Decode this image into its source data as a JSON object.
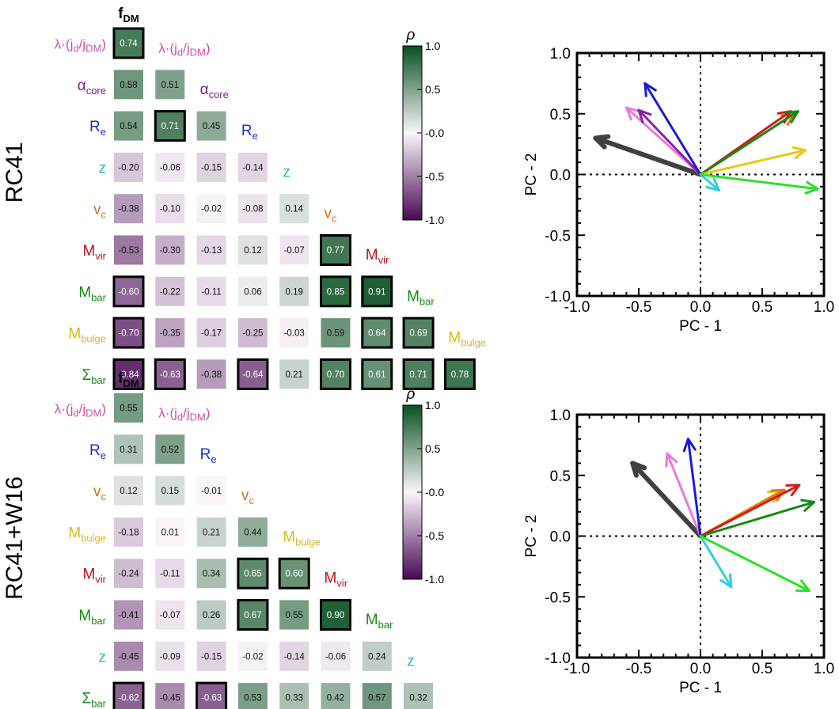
{
  "colorbar": {
    "title": "ρ",
    "ticks": [
      "1.0",
      "0.5",
      "-0.0",
      "-0.5",
      "-1.0"
    ]
  },
  "chart_data": [
    {
      "type": "heatmap",
      "row_title": "RC41",
      "top_label": {
        "text": "f",
        "sub": "DM",
        "color": "#000000"
      },
      "rows": [
        {
          "label": "λ·(j",
          "sub1": "d",
          "mid": "/j",
          "sub2": "DM",
          "tail": ")",
          "color": "#cc4fa8",
          "values": [
            0.74
          ]
        },
        {
          "label": "α",
          "sub": "core",
          "color": "#7a1a8c",
          "values": [
            0.58,
            0.51
          ]
        },
        {
          "label": "R",
          "sub": "e",
          "color": "#1a2fc8",
          "values": [
            0.54,
            0.71,
            0.45
          ]
        },
        {
          "label": "z",
          "sub": "",
          "color": "#2bb8c4",
          "values": [
            -0.2,
            -0.06,
            -0.15,
            -0.14
          ]
        },
        {
          "label": "v",
          "sub": "c",
          "color": "#d2701a",
          "values": [
            -0.38,
            -0.1,
            -0.02,
            -0.08,
            0.14
          ]
        },
        {
          "label": "M",
          "sub": "vir",
          "color": "#b81414",
          "values": [
            -0.53,
            -0.3,
            -0.13,
            0.12,
            -0.07,
            0.77
          ]
        },
        {
          "label": "M",
          "sub": "bar",
          "color": "#138a13",
          "values": [
            -0.6,
            -0.22,
            -0.11,
            0.06,
            0.19,
            0.85,
            0.91
          ]
        },
        {
          "label": "M",
          "sub": "bulge",
          "color": "#d9b81a",
          "values": [
            -0.7,
            -0.35,
            -0.17,
            -0.25,
            -0.03,
            0.59,
            0.64,
            0.69
          ]
        },
        {
          "label": "Σ",
          "sub": "bar",
          "color": "#138a13",
          "values": [
            -0.84,
            -0.63,
            -0.38,
            -0.64,
            0.21,
            0.7,
            0.61,
            0.71,
            0.78
          ]
        }
      ],
      "boxed": [
        [
          0,
          0
        ],
        [
          2,
          1
        ],
        [
          5,
          5
        ],
        [
          6,
          0
        ],
        [
          6,
          5
        ],
        [
          6,
          6
        ],
        [
          7,
          0
        ],
        [
          7,
          6
        ],
        [
          7,
          7
        ],
        [
          8,
          0
        ],
        [
          8,
          1
        ],
        [
          8,
          3
        ],
        [
          8,
          5
        ],
        [
          8,
          6
        ],
        [
          8,
          7
        ],
        [
          8,
          8
        ]
      ],
      "diag_labels": [
        {
          "label": "λ·(j",
          "sub1": "d",
          "mid": "/j",
          "sub2": "DM",
          "tail": ")",
          "color": "#cc4fa8"
        },
        {
          "label": "α",
          "sub": "core",
          "color": "#7a1a8c"
        },
        {
          "label": "R",
          "sub": "e",
          "color": "#1a2fc8"
        },
        {
          "label": "z",
          "sub": "",
          "color": "#2bb8c4"
        },
        {
          "label": "v",
          "sub": "c",
          "color": "#d2701a"
        },
        {
          "label": "M",
          "sub": "vir",
          "color": "#b81414"
        },
        {
          "label": "M",
          "sub": "bar",
          "color": "#138a13"
        },
        {
          "label": "M",
          "sub": "bulge",
          "color": "#d9b81a"
        }
      ]
    },
    {
      "type": "heatmap",
      "row_title": "RC41+W16",
      "top_label": {
        "text": "f",
        "sub": "DM",
        "color": "#000000"
      },
      "rows": [
        {
          "label": "λ·(j",
          "sub1": "d",
          "mid": "/j",
          "sub2": "DM",
          "tail": ")",
          "color": "#cc4fa8",
          "values": [
            0.55
          ]
        },
        {
          "label": "R",
          "sub": "e",
          "color": "#1a2fc8",
          "values": [
            0.31,
            0.52
          ]
        },
        {
          "label": "v",
          "sub": "c",
          "color": "#d2701a",
          "values": [
            0.12,
            0.15,
            -0.01
          ]
        },
        {
          "label": "M",
          "sub": "bulge",
          "color": "#d9b81a",
          "values": [
            -0.18,
            0.01,
            0.21,
            0.44
          ]
        },
        {
          "label": "M",
          "sub": "vir",
          "color": "#b81414",
          "values": [
            -0.24,
            -0.11,
            0.34,
            0.65,
            0.6
          ]
        },
        {
          "label": "M",
          "sub": "bar",
          "color": "#138a13",
          "values": [
            -0.41,
            -0.07,
            0.26,
            0.67,
            0.55,
            0.9
          ]
        },
        {
          "label": "z",
          "sub": "",
          "color": "#2bb8c4",
          "values": [
            -0.45,
            -0.09,
            -0.15,
            -0.02,
            -0.14,
            -0.06,
            0.24
          ]
        },
        {
          "label": "Σ",
          "sub": "bar",
          "color": "#138a13",
          "values": [
            -0.62,
            -0.45,
            -0.63,
            0.53,
            0.33,
            0.42,
            0.57,
            0.32
          ]
        }
      ],
      "boxed": [
        [
          4,
          3
        ],
        [
          4,
          4
        ],
        [
          5,
          3
        ],
        [
          5,
          5
        ],
        [
          7,
          0
        ],
        [
          7,
          2
        ]
      ],
      "diag_labels": [
        {
          "label": "λ·(j",
          "sub1": "d",
          "mid": "/j",
          "sub2": "DM",
          "tail": ")",
          "color": "#cc4fa8"
        },
        {
          "label": "R",
          "sub": "e",
          "color": "#1a2fc8"
        },
        {
          "label": "v",
          "sub": "c",
          "color": "#d2701a"
        },
        {
          "label": "M",
          "sub": "bulge",
          "color": "#d9b81a"
        },
        {
          "label": "M",
          "sub": "vir",
          "color": "#b81414"
        },
        {
          "label": "M",
          "sub": "bar",
          "color": "#138a13"
        },
        {
          "label": "z",
          "sub": "",
          "color": "#2bb8c4"
        }
      ]
    },
    {
      "type": "vector",
      "xlabel": "PC - 1",
      "ylabel": "PC - 2",
      "xlim": [
        -1.0,
        1.0
      ],
      "ylim": [
        -1.0,
        1.0
      ],
      "xticks": [
        "-1.0",
        "-0.5",
        "0.0",
        "0.5",
        "1.0"
      ],
      "yticks": [
        "1.0",
        "0.5",
        "0.0",
        "-0.5",
        "-1.0"
      ],
      "vectors": [
        {
          "x": -0.85,
          "y": 0.3,
          "color": "#404040"
        },
        {
          "x": -0.6,
          "y": 0.55,
          "color": "#e87ad6"
        },
        {
          "x": -0.5,
          "y": 0.53,
          "color": "#8a1fa8"
        },
        {
          "x": -0.45,
          "y": 0.75,
          "color": "#1a1ad6"
        },
        {
          "x": 0.15,
          "y": -0.13,
          "color": "#2bd0e0"
        },
        {
          "x": 0.76,
          "y": 0.5,
          "color": "#e07a10"
        },
        {
          "x": 0.73,
          "y": 0.52,
          "color": "#d61a1a"
        },
        {
          "x": 0.79,
          "y": 0.52,
          "color": "#158a15"
        },
        {
          "x": 0.85,
          "y": 0.2,
          "color": "#e8c81a"
        },
        {
          "x": 0.95,
          "y": -0.12,
          "color": "#2ae02a"
        }
      ]
    },
    {
      "type": "vector",
      "xlabel": "PC - 1",
      "ylabel": "PC - 2",
      "xlim": [
        -1.0,
        1.0
      ],
      "ylim": [
        -1.0,
        1.0
      ],
      "xticks": [
        "-1.0",
        "-0.5",
        "0.0",
        "0.5",
        "1.0"
      ],
      "yticks": [
        "1.0",
        "0.5",
        "0.0",
        "-0.5",
        "-1.0"
      ],
      "vectors": [
        {
          "x": -0.55,
          "y": 0.6,
          "color": "#404040"
        },
        {
          "x": -0.27,
          "y": 0.68,
          "color": "#e87ad6"
        },
        {
          "x": -0.1,
          "y": 0.8,
          "color": "#1a1ad6"
        },
        {
          "x": 0.25,
          "y": -0.42,
          "color": "#2bd0e0"
        },
        {
          "x": 0.65,
          "y": 0.37,
          "color": "#e8c81a"
        },
        {
          "x": 0.68,
          "y": 0.38,
          "color": "#e07a10"
        },
        {
          "x": 0.8,
          "y": 0.42,
          "color": "#d61a1a"
        },
        {
          "x": 0.92,
          "y": 0.28,
          "color": "#158a15"
        },
        {
          "x": 0.88,
          "y": -0.45,
          "color": "#2ae02a"
        }
      ]
    }
  ]
}
